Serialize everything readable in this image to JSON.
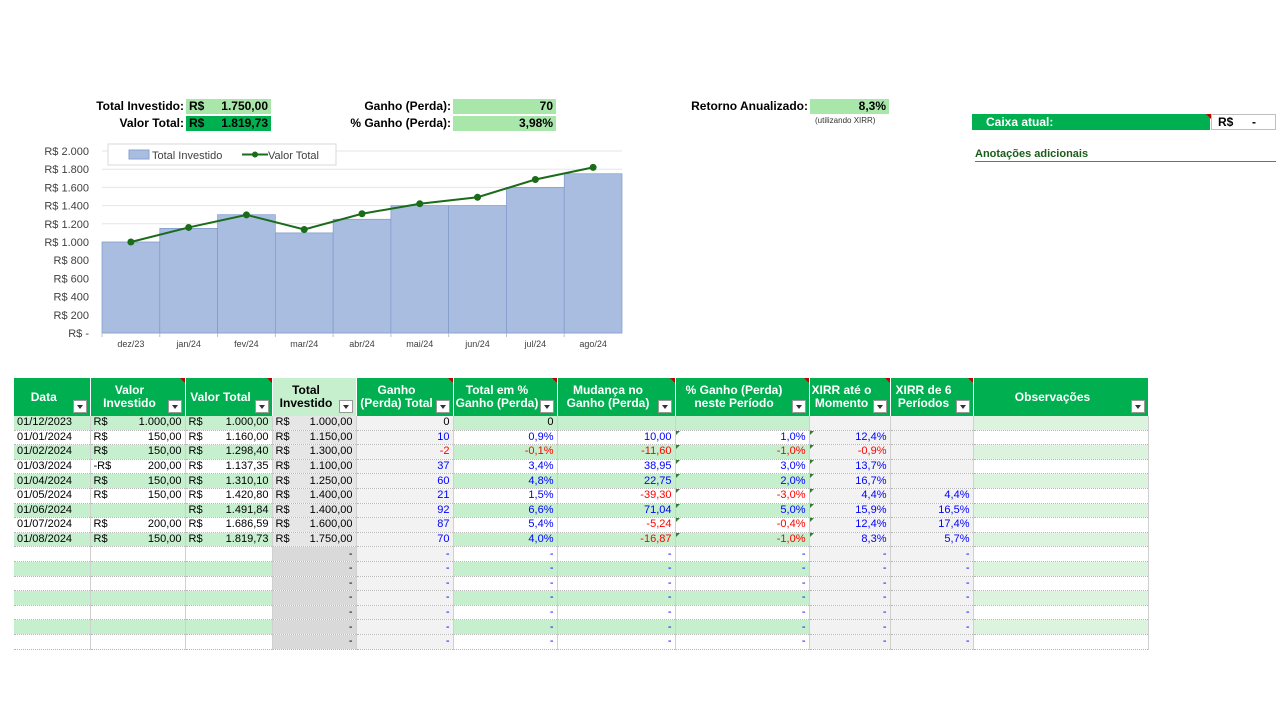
{
  "summary": {
    "total_investido_label": "Total Investido:",
    "total_investido_cur": "R$",
    "total_investido_value": "1.750,00",
    "valor_total_label": "Valor Total:",
    "valor_total_cur": "R$",
    "valor_total_value": "1.819,73",
    "ganho_label": "Ganho (Perda):",
    "ganho_value": "70",
    "pct_ganho_label": "% Ganho (Perda):",
    "pct_ganho_value": "3,98%",
    "retorno_label": "Retorno Anualizado:",
    "retorno_value": "8,3%",
    "retorno_note": "(utilizando XIRR)"
  },
  "side": {
    "caixa_label": "Caixa atual:",
    "caixa_cur": "R$",
    "caixa_value": "-",
    "anotacoes_label": "Anotações adicionais"
  },
  "chart_data": {
    "type": "bar",
    "categories": [
      "dez/23",
      "jan/24",
      "fev/24",
      "mar/24",
      "abr/24",
      "mai/24",
      "jun/24",
      "jul/24",
      "ago/24"
    ],
    "series": [
      {
        "name": "Total Investido",
        "type": "bar",
        "values": [
          1000,
          1150,
          1300,
          1100,
          1250,
          1400,
          1400,
          1600,
          1750
        ],
        "color": "#a9bde1"
      },
      {
        "name": "Valor Total",
        "type": "line",
        "values": [
          1000.0,
          1160.0,
          1298.4,
          1137.35,
          1310.1,
          1420.8,
          1491.84,
          1686.59,
          1819.73
        ],
        "color": "#1a6b1a"
      }
    ],
    "yticks": [
      "R$ 2.000",
      "R$ 1.800",
      "R$ 1.600",
      "R$ 1.400",
      "R$ 1.200",
      "R$ 1.000",
      "R$ 800",
      "R$ 600",
      "R$ 400",
      "R$ 200",
      "R$ -"
    ],
    "ylim": [
      0,
      2000
    ],
    "legend_position": "top-left",
    "grid": true
  },
  "table": {
    "headers": [
      {
        "label": "Data",
        "flag": false
      },
      {
        "label": "Valor Investido",
        "flag": true
      },
      {
        "label": "Valor Total",
        "flag": true
      },
      {
        "label": "Total Investido",
        "flag": false
      },
      {
        "label": "Ganho (Perda) Total",
        "flag": true
      },
      {
        "label": "Total em % Ganho (Perda)",
        "flag": true
      },
      {
        "label": "Mudança no Ganho (Perda)",
        "flag": true
      },
      {
        "label": "% Ganho (Perda) neste Período",
        "flag": true
      },
      {
        "label": "XIRR até o Momento",
        "flag": true
      },
      {
        "label": "XIRR de 6 Períodos",
        "flag": true
      },
      {
        "label": "Observações",
        "flag": false
      }
    ],
    "rows": [
      {
        "data": "01/12/2023",
        "vi_cur": "R$",
        "vi": "1.000,00",
        "vt_cur": "R$",
        "vt": "1.000,00",
        "ti_cur": "R$",
        "ti": "1.000,00",
        "g": "0",
        "g_c": "",
        "gp": "0",
        "gp_c": "",
        "m": "",
        "m_c": "",
        "pp": "",
        "pp_c": "",
        "x": "",
        "x_c": "",
        "x6": "",
        "x6_c": ""
      },
      {
        "data": "01/01/2024",
        "vi_cur": "R$",
        "vi": "150,00",
        "vt_cur": "R$",
        "vt": "1.160,00",
        "ti_cur": "R$",
        "ti": "1.150,00",
        "g": "10",
        "g_c": "blue",
        "gp": "0,9%",
        "gp_c": "blue",
        "m": "10,00",
        "m_c": "blue",
        "pp": "1,0%",
        "pp_c": "blue",
        "x": "12,4%",
        "x_c": "blue",
        "x6": "",
        "x6_c": ""
      },
      {
        "data": "01/02/2024",
        "vi_cur": "R$",
        "vi": "150,00",
        "vt_cur": "R$",
        "vt": "1.298,40",
        "ti_cur": "R$",
        "ti": "1.300,00",
        "g": "-2",
        "g_c": "red",
        "gp": "-0,1%",
        "gp_c": "red",
        "m": "-11,60",
        "m_c": "red",
        "pp": "-1,0%",
        "pp_c": "red",
        "x": "-0,9%",
        "x_c": "red",
        "x6": "",
        "x6_c": ""
      },
      {
        "data": "01/03/2024",
        "vi_cur": "-R$",
        "vi": "200,00",
        "vt_cur": "R$",
        "vt": "1.137,35",
        "ti_cur": "R$",
        "ti": "1.100,00",
        "g": "37",
        "g_c": "blue",
        "gp": "3,4%",
        "gp_c": "blue",
        "m": "38,95",
        "m_c": "blue",
        "pp": "3,0%",
        "pp_c": "blue",
        "x": "13,7%",
        "x_c": "blue",
        "x6": "",
        "x6_c": ""
      },
      {
        "data": "01/04/2024",
        "vi_cur": "R$",
        "vi": "150,00",
        "vt_cur": "R$",
        "vt": "1.310,10",
        "ti_cur": "R$",
        "ti": "1.250,00",
        "g": "60",
        "g_c": "blue",
        "gp": "4,8%",
        "gp_c": "blue",
        "m": "22,75",
        "m_c": "blue",
        "pp": "2,0%",
        "pp_c": "blue",
        "x": "16,7%",
        "x_c": "blue",
        "x6": "",
        "x6_c": ""
      },
      {
        "data": "01/05/2024",
        "vi_cur": "R$",
        "vi": "150,00",
        "vt_cur": "R$",
        "vt": "1.420,80",
        "ti_cur": "R$",
        "ti": "1.400,00",
        "g": "21",
        "g_c": "blue",
        "gp": "1,5%",
        "gp_c": "blue",
        "m": "-39,30",
        "m_c": "red",
        "pp": "-3,0%",
        "pp_c": "red",
        "x": "4,4%",
        "x_c": "blue",
        "x6": "4,4%",
        "x6_c": "blue"
      },
      {
        "data": "01/06/2024",
        "vi_cur": "",
        "vi": "",
        "vt_cur": "R$",
        "vt": "1.491,84",
        "ti_cur": "R$",
        "ti": "1.400,00",
        "g": "92",
        "g_c": "blue",
        "gp": "6,6%",
        "gp_c": "blue",
        "m": "71,04",
        "m_c": "blue",
        "pp": "5,0%",
        "pp_c": "blue",
        "x": "15,9%",
        "x_c": "blue",
        "x6": "16,5%",
        "x6_c": "blue"
      },
      {
        "data": "01/07/2024",
        "vi_cur": "R$",
        "vi": "200,00",
        "vt_cur": "R$",
        "vt": "1.686,59",
        "ti_cur": "R$",
        "ti": "1.600,00",
        "g": "87",
        "g_c": "blue",
        "gp": "5,4%",
        "gp_c": "blue",
        "m": "-5,24",
        "m_c": "red",
        "pp": "-0,4%",
        "pp_c": "red",
        "x": "12,4%",
        "x_c": "blue",
        "x6": "17,4%",
        "x6_c": "blue"
      },
      {
        "data": "01/08/2024",
        "vi_cur": "R$",
        "vi": "150,00",
        "vt_cur": "R$",
        "vt": "1.819,73",
        "ti_cur": "R$",
        "ti": "1.750,00",
        "g": "70",
        "g_c": "blue",
        "gp": "4,0%",
        "gp_c": "blue",
        "m": "-16,87",
        "m_c": "red",
        "pp": "-1,0%",
        "pp_c": "red",
        "x": "8,3%",
        "x_c": "blue",
        "x6": "5,7%",
        "x6_c": "blue"
      },
      {
        "data": "",
        "vi_cur": "",
        "vi": "",
        "vt_cur": "",
        "vt": "",
        "ti_cur": "",
        "ti": "-",
        "g": "-",
        "g_c": "blue",
        "gp": "-",
        "gp_c": "blue",
        "m": "-",
        "m_c": "blue",
        "pp": "-",
        "pp_c": "blue",
        "x": "-",
        "x_c": "blue",
        "x6": "-",
        "x6_c": "blue"
      },
      {
        "data": "",
        "vi_cur": "",
        "vi": "",
        "vt_cur": "",
        "vt": "",
        "ti_cur": "",
        "ti": "-",
        "g": "-",
        "g_c": "blue",
        "gp": "-",
        "gp_c": "blue",
        "m": "-",
        "m_c": "blue",
        "pp": "-",
        "pp_c": "blue",
        "x": "-",
        "x_c": "blue",
        "x6": "-",
        "x6_c": "blue"
      },
      {
        "data": "",
        "vi_cur": "",
        "vi": "",
        "vt_cur": "",
        "vt": "",
        "ti_cur": "",
        "ti": "-",
        "g": "-",
        "g_c": "blue",
        "gp": "-",
        "gp_c": "blue",
        "m": "-",
        "m_c": "blue",
        "pp": "-",
        "pp_c": "blue",
        "x": "-",
        "x_c": "blue",
        "x6": "-",
        "x6_c": "blue"
      },
      {
        "data": "",
        "vi_cur": "",
        "vi": "",
        "vt_cur": "",
        "vt": "",
        "ti_cur": "",
        "ti": "-",
        "g": "-",
        "g_c": "blue",
        "gp": "-",
        "gp_c": "blue",
        "m": "-",
        "m_c": "blue",
        "pp": "-",
        "pp_c": "blue",
        "x": "-",
        "x_c": "blue",
        "x6": "-",
        "x6_c": "blue"
      },
      {
        "data": "",
        "vi_cur": "",
        "vi": "",
        "vt_cur": "",
        "vt": "",
        "ti_cur": "",
        "ti": "-",
        "g": "-",
        "g_c": "blue",
        "gp": "-",
        "gp_c": "blue",
        "m": "-",
        "m_c": "blue",
        "pp": "-",
        "pp_c": "blue",
        "x": "-",
        "x_c": "blue",
        "x6": "-",
        "x6_c": "blue"
      },
      {
        "data": "",
        "vi_cur": "",
        "vi": "",
        "vt_cur": "",
        "vt": "",
        "ti_cur": "",
        "ti": "-",
        "g": "-",
        "g_c": "blue",
        "gp": "-",
        "gp_c": "blue",
        "m": "-",
        "m_c": "blue",
        "pp": "-",
        "pp_c": "blue",
        "x": "-",
        "x_c": "blue",
        "x6": "-",
        "x6_c": "blue"
      },
      {
        "data": "",
        "vi_cur": "",
        "vi": "",
        "vt_cur": "",
        "vt": "",
        "ti_cur": "",
        "ti": "-",
        "g": "-",
        "g_c": "blue",
        "gp": "-",
        "gp_c": "blue",
        "m": "-",
        "m_c": "blue",
        "pp": "-",
        "pp_c": "blue",
        "x": "-",
        "x_c": "blue",
        "x6": "-",
        "x6_c": "blue"
      }
    ]
  },
  "colors": {
    "header_green": "#00b050",
    "light_green": "#a9e6a9",
    "row_green": "#c6efce",
    "bar_blue": "#a9bde1",
    "line_green": "#1a6b1a",
    "positive": "#0000ff",
    "negative": "#ff0000"
  }
}
